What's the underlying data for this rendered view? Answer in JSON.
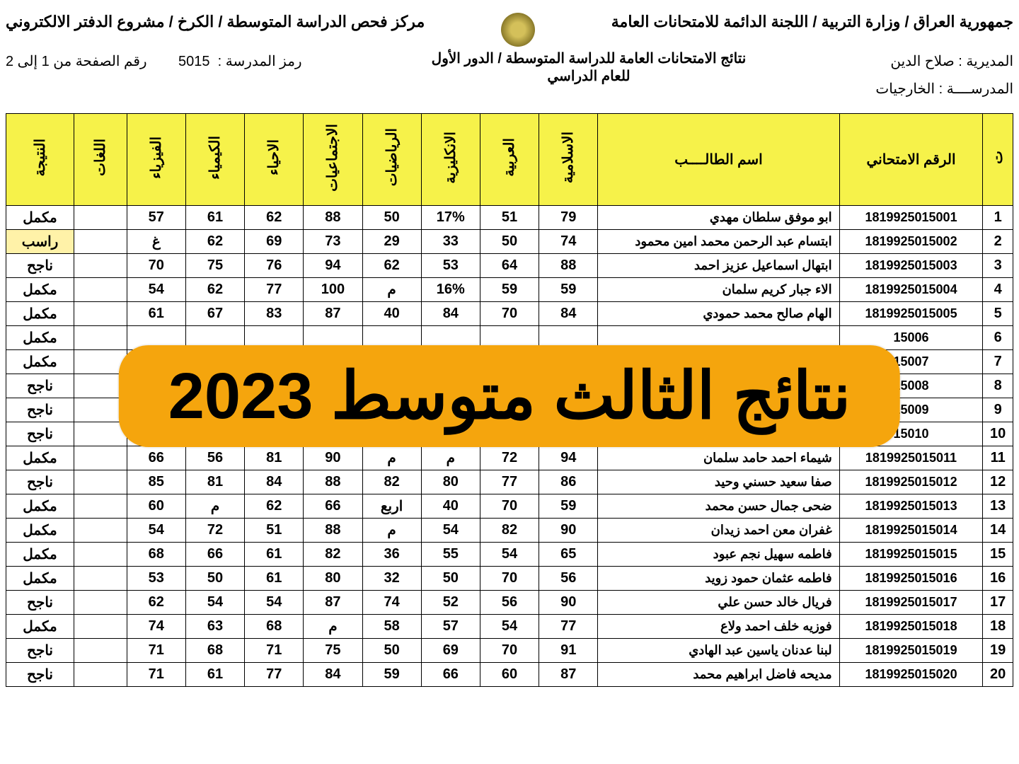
{
  "header": {
    "ministry": "جمهورية العراق / وزارة التربية / اللجنة الدائمة للامتحانات العامة",
    "center": "مركز فحص الدراسة المتوسطة / الكرخ / مشروع الدفتر الالكتروني",
    "directorate_label": "المديرية :",
    "directorate": "صلاح الدين",
    "school_label": "المدرســــة :",
    "school": "الخارجيات",
    "results_title": "نتائج الامتحانات العامة للدراسة المتوسطة / الدور الأول",
    "year_label": "للعام الدراسي",
    "school_code_label": "رمز المدرسة :",
    "school_code": "5015",
    "page_label": "رقم الصفحة من 1 إلى 2"
  },
  "columns": {
    "seq": "ت",
    "exam_no": "الرقم الامتحاني",
    "name": "اسم الطالــــب",
    "islamic": "الاسلامية",
    "arabic": "العربية",
    "english": "الانكليزية",
    "math": "الرياضيات",
    "social": "الاجتماعيات",
    "biology": "الاحياء",
    "chemistry": "الكيمياء",
    "physics": "الفيزياء",
    "blank": "اللغات",
    "result": "النتيجة"
  },
  "rows": [
    {
      "seq": "1",
      "exam": "1819925015001",
      "name": "ابو موفق سلطان مهدي",
      "islamic": "79",
      "arabic": "51",
      "english": "17%",
      "math": "50",
      "social": "88",
      "biology": "62",
      "chemistry": "61",
      "physics": "57",
      "blank": "",
      "result": "مكمل"
    },
    {
      "seq": "2",
      "exam": "1819925015002",
      "name": "ابتسام عبد الرحمن محمد امين محمود",
      "islamic": "74",
      "arabic": "50",
      "english": "33",
      "math": "29",
      "social": "73",
      "biology": "69",
      "chemistry": "62",
      "physics": "غ",
      "blank": "",
      "result": "راسب",
      "hi": true
    },
    {
      "seq": "3",
      "exam": "1819925015003",
      "name": "ابتهال اسماعيل عزيز احمد",
      "islamic": "88",
      "arabic": "64",
      "english": "53",
      "math": "62",
      "social": "94",
      "biology": "76",
      "chemistry": "75",
      "physics": "70",
      "blank": "",
      "result": "ناجح"
    },
    {
      "seq": "4",
      "exam": "1819925015004",
      "name": "الاء جبار كريم سلمان",
      "islamic": "59",
      "arabic": "59",
      "english": "16%",
      "math": "م",
      "social": "100",
      "biology": "77",
      "chemistry": "62",
      "physics": "54",
      "blank": "",
      "result": "مكمل"
    },
    {
      "seq": "5",
      "exam": "1819925015005",
      "name": "الهام صالح محمد حمودي",
      "islamic": "84",
      "arabic": "70",
      "english": "84",
      "math": "40",
      "social": "87",
      "biology": "83",
      "chemistry": "67",
      "physics": "61",
      "blank": "",
      "result": "مكمل"
    },
    {
      "seq": "6",
      "exam": "15006",
      "name": "",
      "islamic": "",
      "arabic": "",
      "english": "",
      "math": "",
      "social": "",
      "biology": "",
      "chemistry": "",
      "physics": "",
      "blank": "",
      "result": "مكمل"
    },
    {
      "seq": "7",
      "exam": "15007",
      "name": "",
      "islamic": "",
      "arabic": "",
      "english": "",
      "math": "",
      "social": "",
      "biology": "",
      "chemistry": "",
      "physics": "",
      "blank": "",
      "result": "مكمل"
    },
    {
      "seq": "8",
      "exam": "15008",
      "name": "",
      "islamic": "",
      "arabic": "",
      "english": "",
      "math": "",
      "social": "",
      "biology": "",
      "chemistry": "",
      "physics": "",
      "blank": "",
      "result": "ناجح"
    },
    {
      "seq": "9",
      "exam": "15009",
      "name": "",
      "islamic": "",
      "arabic": "",
      "english": "",
      "math": "",
      "social": "",
      "biology": "",
      "chemistry": "",
      "physics": "",
      "blank": "",
      "result": "ناجح"
    },
    {
      "seq": "10",
      "exam": "15010",
      "name": "",
      "islamic": "",
      "arabic": "",
      "english": "",
      "math": "",
      "social": "",
      "biology": "",
      "chemistry": "",
      "physics": "",
      "blank": "",
      "result": "ناجح"
    },
    {
      "seq": "11",
      "exam": "1819925015011",
      "name": "شيماء احمد حامد سلمان",
      "islamic": "94",
      "arabic": "72",
      "english": "م",
      "math": "م",
      "social": "90",
      "biology": "81",
      "chemistry": "56",
      "physics": "66",
      "blank": "",
      "result": "مكمل"
    },
    {
      "seq": "12",
      "exam": "1819925015012",
      "name": "صفا سعيد حسني وحيد",
      "islamic": "86",
      "arabic": "77",
      "english": "80",
      "math": "82",
      "social": "88",
      "biology": "84",
      "chemistry": "81",
      "physics": "85",
      "blank": "",
      "result": "ناجح"
    },
    {
      "seq": "13",
      "exam": "1819925015013",
      "name": "ضحى جمال حسن محمد",
      "islamic": "59",
      "arabic": "70",
      "english": "40",
      "math": "اربع",
      "social": "66",
      "biology": "62",
      "chemistry": "م",
      "physics": "60",
      "blank": "",
      "result": "مكمل"
    },
    {
      "seq": "14",
      "exam": "1819925015014",
      "name": "غفران معن احمد زيدان",
      "islamic": "90",
      "arabic": "82",
      "english": "54",
      "math": "م",
      "social": "88",
      "biology": "51",
      "chemistry": "72",
      "physics": "54",
      "blank": "",
      "result": "مكمل"
    },
    {
      "seq": "15",
      "exam": "1819925015015",
      "name": "فاطمه سهيل نجم عبود",
      "islamic": "65",
      "arabic": "54",
      "english": "55",
      "math": "36",
      "social": "82",
      "biology": "61",
      "chemistry": "66",
      "physics": "68",
      "blank": "",
      "result": "مكمل"
    },
    {
      "seq": "16",
      "exam": "1819925015016",
      "name": "فاطمه عثمان حمود زويد",
      "islamic": "56",
      "arabic": "70",
      "english": "50",
      "math": "32",
      "social": "80",
      "biology": "61",
      "chemistry": "50",
      "physics": "53",
      "blank": "",
      "result": "مكمل"
    },
    {
      "seq": "17",
      "exam": "1819925015017",
      "name": "فريال خالد حسن علي",
      "islamic": "90",
      "arabic": "56",
      "english": "52",
      "math": "74",
      "social": "87",
      "biology": "54",
      "chemistry": "54",
      "physics": "62",
      "blank": "",
      "result": "ناجح"
    },
    {
      "seq": "18",
      "exam": "1819925015018",
      "name": "فوزيه خلف احمد ولاع",
      "islamic": "77",
      "arabic": "54",
      "english": "57",
      "math": "58",
      "social": "م",
      "biology": "68",
      "chemistry": "63",
      "physics": "74",
      "blank": "",
      "result": "مكمل"
    },
    {
      "seq": "19",
      "exam": "1819925015019",
      "name": "لبنا عدنان ياسين عبد الهادي",
      "islamic": "91",
      "arabic": "70",
      "english": "69",
      "math": "50",
      "social": "75",
      "biology": "71",
      "chemistry": "68",
      "physics": "71",
      "blank": "",
      "result": "ناجح"
    },
    {
      "seq": "20",
      "exam": "1819925015020",
      "name": "مديحه فاضل ابراهيم محمد",
      "islamic": "87",
      "arabic": "60",
      "english": "66",
      "math": "59",
      "social": "84",
      "biology": "77",
      "chemistry": "61",
      "physics": "71",
      "blank": "",
      "result": "ناجح"
    }
  ],
  "overlay": "نتائج الثالث متوسط 2023",
  "style": {
    "header_bg": "#f6f24a",
    "overlay_bg": "#f5a50d",
    "overlay_color": "#000000",
    "border_color": "#000000",
    "highlight_bg": "#fff2a8",
    "font_size_header": 22,
    "font_size_cell": 20,
    "overlay_font_size": 92,
    "overlay_radius": 42
  }
}
